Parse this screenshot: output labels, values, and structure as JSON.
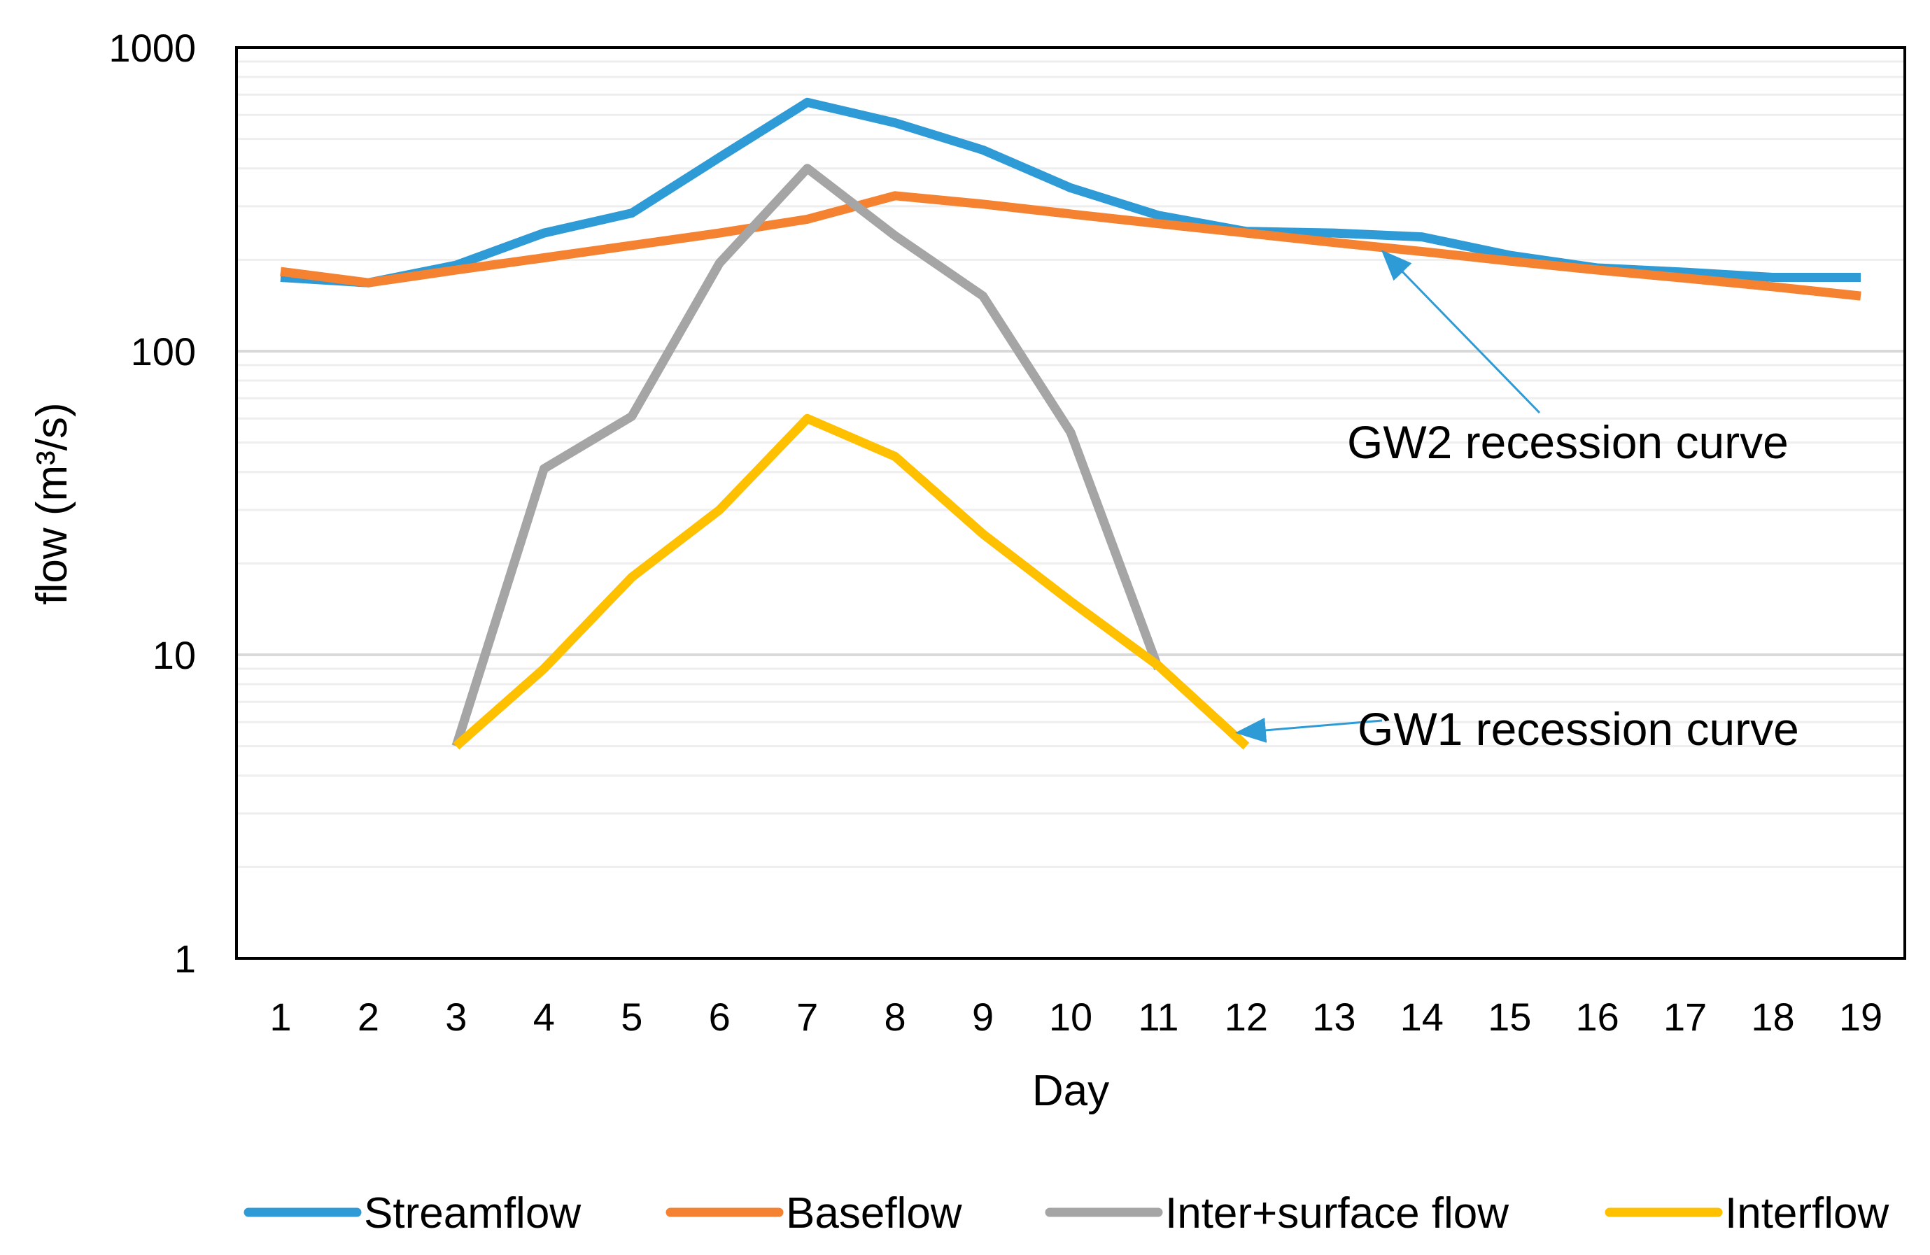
{
  "chart_data": {
    "type": "line",
    "title": "",
    "xlabel": "Day",
    "ylabel": "flow (m³/s)",
    "yscale": "log",
    "ylim": [
      1,
      1000
    ],
    "yticks": [
      1,
      10,
      100,
      1000
    ],
    "ytick_labels": [
      "1",
      "10",
      "100",
      "1000"
    ],
    "grid": "horizontal major and minor",
    "x": [
      1,
      2,
      3,
      4,
      5,
      6,
      7,
      8,
      9,
      10,
      11,
      12,
      13,
      14,
      15,
      16,
      17,
      18,
      19
    ],
    "xtick_labels": [
      "1",
      "2",
      "3",
      "4",
      "5",
      "6",
      "7",
      "8",
      "9",
      "10",
      "11",
      "12",
      "13",
      "14",
      "15",
      "16",
      "17",
      "18",
      "19"
    ],
    "legend_position": "bottom",
    "series": [
      {
        "name": "Streamflow",
        "color": "#2E9BD6",
        "values": [
          175,
          168,
          192,
          245,
          285,
          435,
          660,
          565,
          460,
          345,
          280,
          248,
          245,
          238,
          207,
          188,
          182,
          175,
          175
        ]
      },
      {
        "name": "Baseflow",
        "color": "#F58231",
        "values": [
          183,
          168,
          185,
          203,
          223,
          245,
          272,
          325,
          305,
          283,
          263,
          245,
          228,
          213,
          198,
          185,
          174,
          163,
          152
        ]
      },
      {
        "name": "Inter+surface flow",
        "color": "#A5A5A5",
        "values": [
          null,
          null,
          5,
          41,
          61,
          195,
          400,
          240,
          152,
          54,
          9,
          null,
          null,
          null,
          null,
          null,
          null,
          null,
          null
        ]
      },
      {
        "name": "Interflow",
        "color": "#FFC000",
        "values": [
          null,
          null,
          5,
          9,
          18,
          30,
          60,
          45,
          25,
          15,
          9.2,
          5,
          null,
          null,
          null,
          null,
          null,
          null,
          null
        ]
      }
    ],
    "annotations": [
      {
        "text": "GW2 recession curve",
        "color": "#2E9BD6",
        "target_x": 13.6,
        "target_y": 218
      },
      {
        "text": "GW1 recession curve",
        "color": "#2E9BD6",
        "target_x": 12.0,
        "target_y": 5.6
      }
    ]
  }
}
